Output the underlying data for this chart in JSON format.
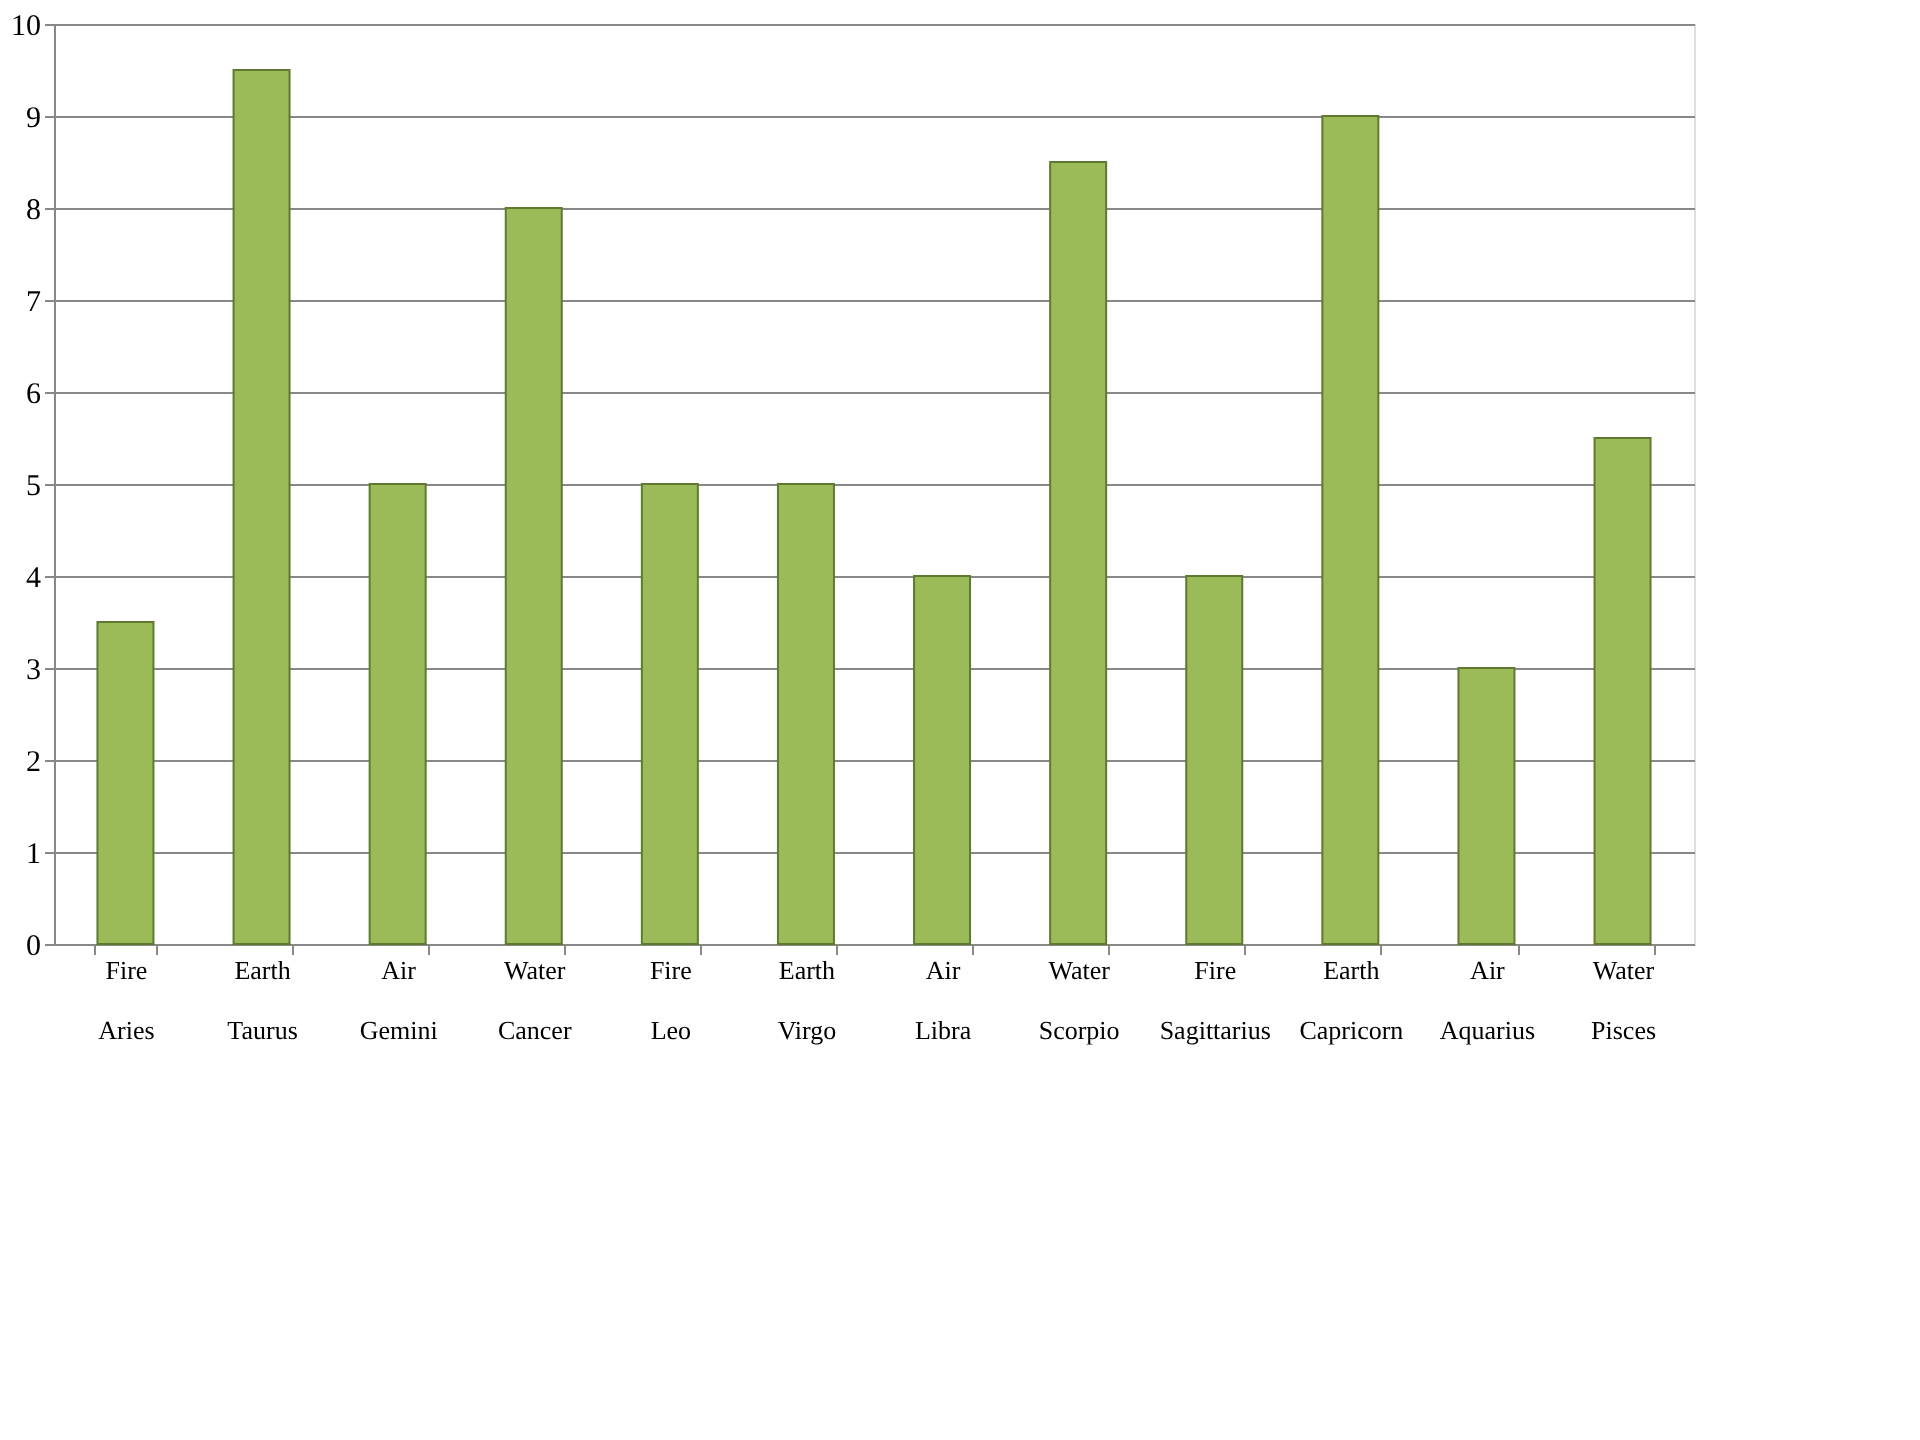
{
  "chart_data": {
    "type": "bar",
    "categories": [
      "Fire\nAries",
      "Earth\nTaurus",
      "Air\nGemini",
      "Water\nCancer",
      "Fire\nLeo",
      "Earth\nVirgo",
      "Air\nLibra",
      "Water\nScorpio",
      "Fire\nSagittarius",
      "Earth\nCapricorn",
      "Air\nAquarius",
      "Water\nPisces"
    ],
    "values": [
      3.5,
      9.5,
      5,
      8,
      5,
      5,
      4,
      8.5,
      4,
      9,
      3,
      5.5
    ],
    "color": "#9bbb59",
    "ylim": [
      0,
      10
    ],
    "yticks": [
      0,
      1,
      2,
      3,
      4,
      5,
      6,
      7,
      8,
      9,
      10
    ],
    "grid": "y"
  }
}
